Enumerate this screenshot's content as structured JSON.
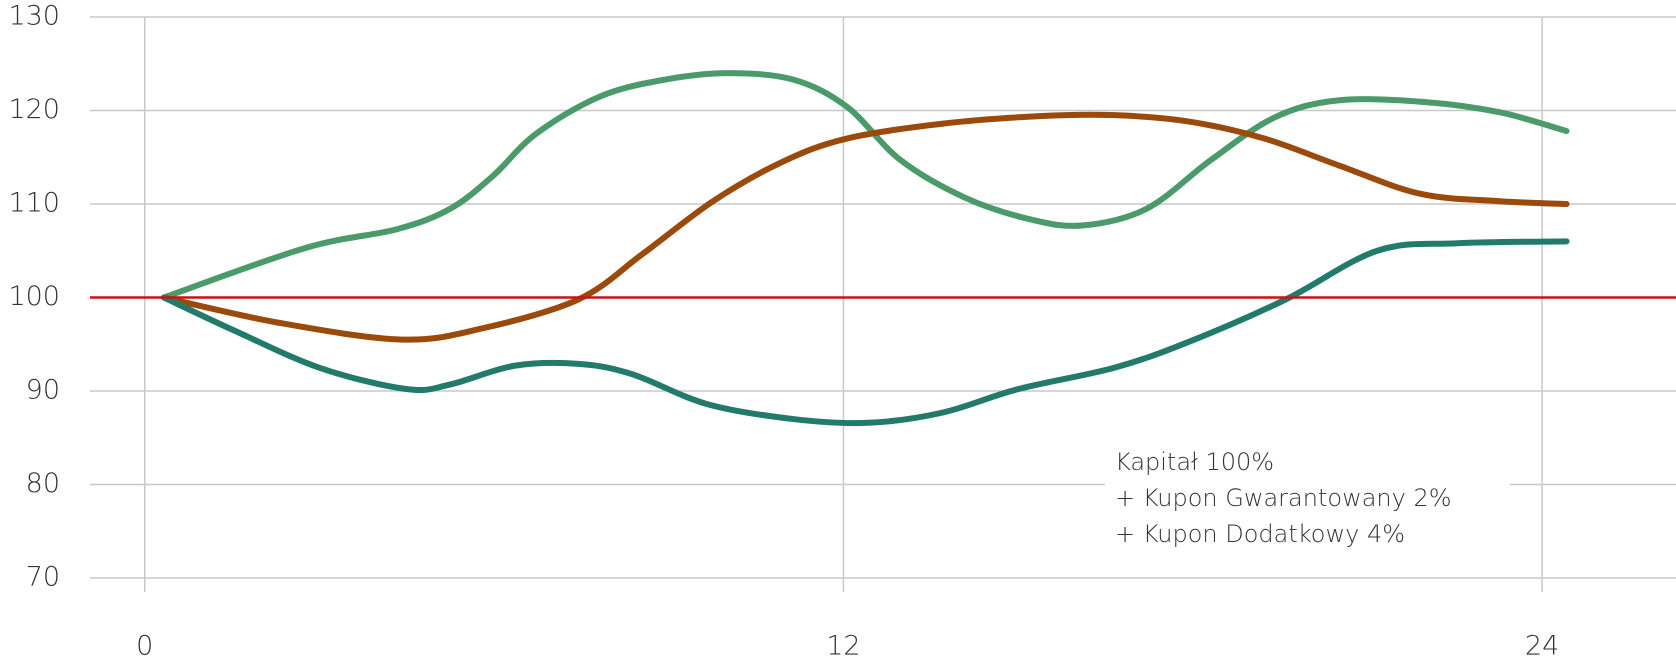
{
  "chart_data": {
    "type": "line",
    "xlim": [
      -0.94,
      26.3
    ],
    "xticks": [
      0,
      12,
      24
    ],
    "ylim": [
      70,
      130
    ],
    "yticks": [
      70,
      80,
      90,
      100,
      110,
      120,
      130
    ],
    "grid": true,
    "reference_line": {
      "value": 100,
      "color": "#cc1111"
    },
    "annotation": [
      "Kapitał 100%",
      "+ Kupon Gwarantowany 2%",
      "+ Kupon Dodatkowy 4%"
    ],
    "series": [
      {
        "color": "#4a9a6a",
        "x": [
          0.33,
          2.76,
          4.33,
          5.25,
          5.98,
          6.72,
          7.82,
          8.93,
          10.03,
          11.14,
          12.06,
          12.98,
          14.08,
          15.18,
          16.1,
          17.21,
          18.31,
          19.42,
          20.52,
          22,
          23.28,
          24.42
        ],
        "values": [
          100,
          105.3,
          107.3,
          109.5,
          113,
          117.5,
          121.5,
          123.3,
          124,
          123.3,
          120.4,
          114.7,
          110.7,
          108.4,
          107.7,
          109.5,
          114.7,
          119.3,
          121.1,
          120.9,
          119.8,
          117.8
        ]
      },
      {
        "color": "#9a4a0a",
        "x": [
          0.33,
          2.3,
          4.42,
          5.8,
          7.45,
          8.56,
          9.76,
          10.95,
          12.06,
          13.71,
          15.37,
          16.66,
          17.95,
          19.23,
          20.52,
          21.9,
          23.28,
          24.42
        ],
        "values": [
          100,
          97.3,
          95.5,
          96.7,
          99.8,
          104.7,
          110.3,
          114.5,
          117,
          118.6,
          119.4,
          119.5,
          118.8,
          117,
          114.1,
          111.1,
          110.3,
          110
        ]
      },
      {
        "color": "#217a6a",
        "x": [
          0.33,
          1.56,
          3.04,
          4.51,
          5.25,
          6.35,
          7.45,
          8.37,
          9.66,
          11.14,
          12.43,
          13.71,
          15,
          16.66,
          17.95,
          19.6,
          21.17,
          22.55,
          24.42
        ],
        "values": [
          100,
          96.4,
          92.4,
          90.2,
          90.7,
          92.7,
          92.9,
          91.8,
          88.6,
          87,
          86.6,
          87.7,
          90.2,
          92.5,
          95.3,
          99.8,
          105,
          105.8,
          106
        ]
      }
    ]
  }
}
